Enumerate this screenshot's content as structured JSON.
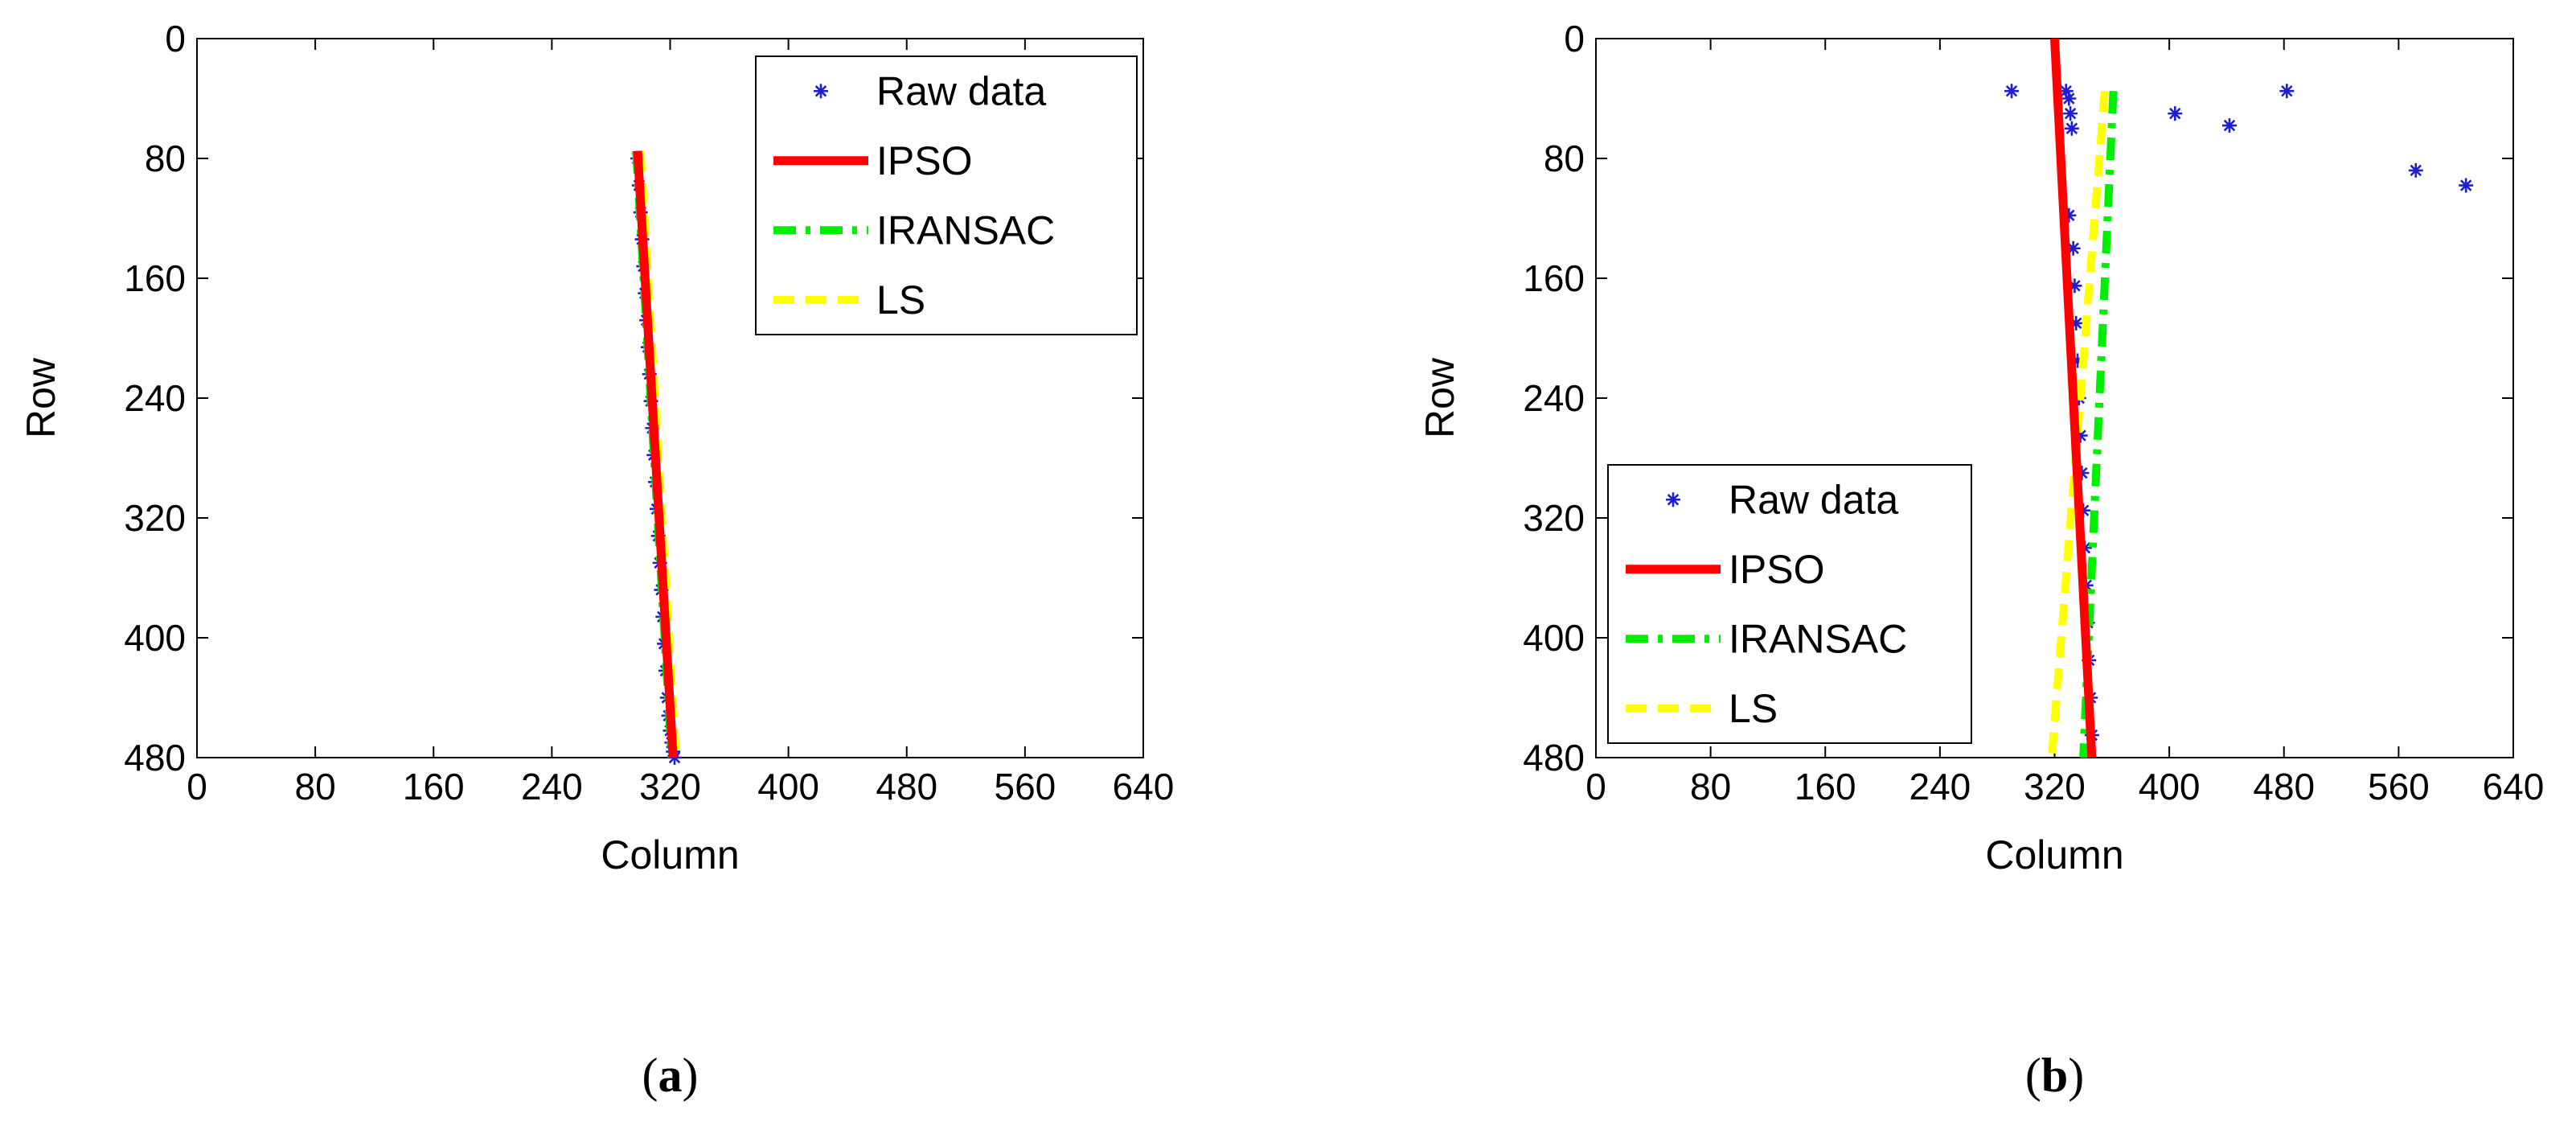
{
  "chart_data": [
    {
      "type": "line",
      "panel": "a",
      "caption": {
        "open": "(",
        "letter": "a",
        "close": ")"
      },
      "xlabel": "Column",
      "ylabel": "Row",
      "xlim": [
        0,
        640
      ],
      "ylim": [
        0,
        480
      ],
      "y_reversed": true,
      "xticks": [
        "0",
        "80",
        "160",
        "240",
        "320",
        "400",
        "480",
        "560",
        "640"
      ],
      "yticks": [
        "0",
        "80",
        "160",
        "240",
        "320",
        "400",
        "480"
      ],
      "legend_position": "top-right",
      "series": [
        {
          "name": "Raw data",
          "style": "markers",
          "marker": "*",
          "color": "#1f1fd0",
          "x": [
            298,
            299,
            300,
            301,
            302,
            303,
            304,
            305,
            306,
            307,
            308,
            309,
            310,
            311,
            312,
            313,
            314,
            315,
            316,
            317,
            318,
            319,
            320,
            321,
            322,
            323
          ],
          "y": [
            80,
            98,
            116,
            134,
            152,
            170,
            188,
            206,
            224,
            242,
            260,
            278,
            296,
            314,
            332,
            350,
            368,
            386,
            404,
            422,
            440,
            452,
            462,
            470,
            476,
            480
          ]
        },
        {
          "name": "IPSO",
          "style": "solid",
          "color": "#ff0000",
          "x": [
            298,
            322
          ],
          "y": [
            75,
            480
          ]
        },
        {
          "name": "IRANSAC",
          "style": "dashdot",
          "color": "#00ee00",
          "x": [
            297,
            321
          ],
          "y": [
            75,
            480
          ]
        },
        {
          "name": "LS",
          "style": "dashed",
          "color": "#ffff00",
          "x": [
            300,
            324
          ],
          "y": [
            75,
            480
          ]
        }
      ]
    },
    {
      "type": "line",
      "panel": "b",
      "caption": {
        "open": "(",
        "letter": "b",
        "close": ")"
      },
      "xlabel": "Column",
      "ylabel": "Row",
      "xlim": [
        0,
        640
      ],
      "ylim": [
        0,
        480
      ],
      "y_reversed": true,
      "xticks": [
        "0",
        "80",
        "160",
        "240",
        "320",
        "400",
        "480",
        "560",
        "640"
      ],
      "yticks": [
        "0",
        "80",
        "160",
        "240",
        "320",
        "400",
        "480"
      ],
      "legend_position": "bottom-left",
      "series": [
        {
          "name": "Raw data",
          "style": "markers",
          "marker": "*",
          "color": "#1f1fd0",
          "x": [
            290,
            328,
            330,
            331,
            332,
            330,
            333,
            334,
            335,
            336,
            337,
            338,
            339,
            340,
            341,
            342,
            343,
            344,
            345,
            346,
            404,
            442,
            482,
            572,
            607
          ],
          "y": [
            35,
            35,
            40,
            50,
            60,
            118,
            140,
            165,
            190,
            215,
            240,
            265,
            290,
            315,
            340,
            365,
            390,
            415,
            440,
            465,
            50,
            58,
            35,
            88,
            98
          ]
        },
        {
          "name": "IPSO",
          "style": "solid",
          "color": "#ff0000",
          "x": [
            320,
            346
          ],
          "y": [
            0,
            480
          ]
        },
        {
          "name": "IRANSAC",
          "style": "dashdot",
          "color": "#00ee00",
          "x": [
            361,
            340
          ],
          "y": [
            35,
            480
          ]
        },
        {
          "name": "LS",
          "style": "dashed",
          "color": "#ffff00",
          "x": [
            355,
            318
          ],
          "y": [
            35,
            480
          ]
        }
      ]
    }
  ]
}
